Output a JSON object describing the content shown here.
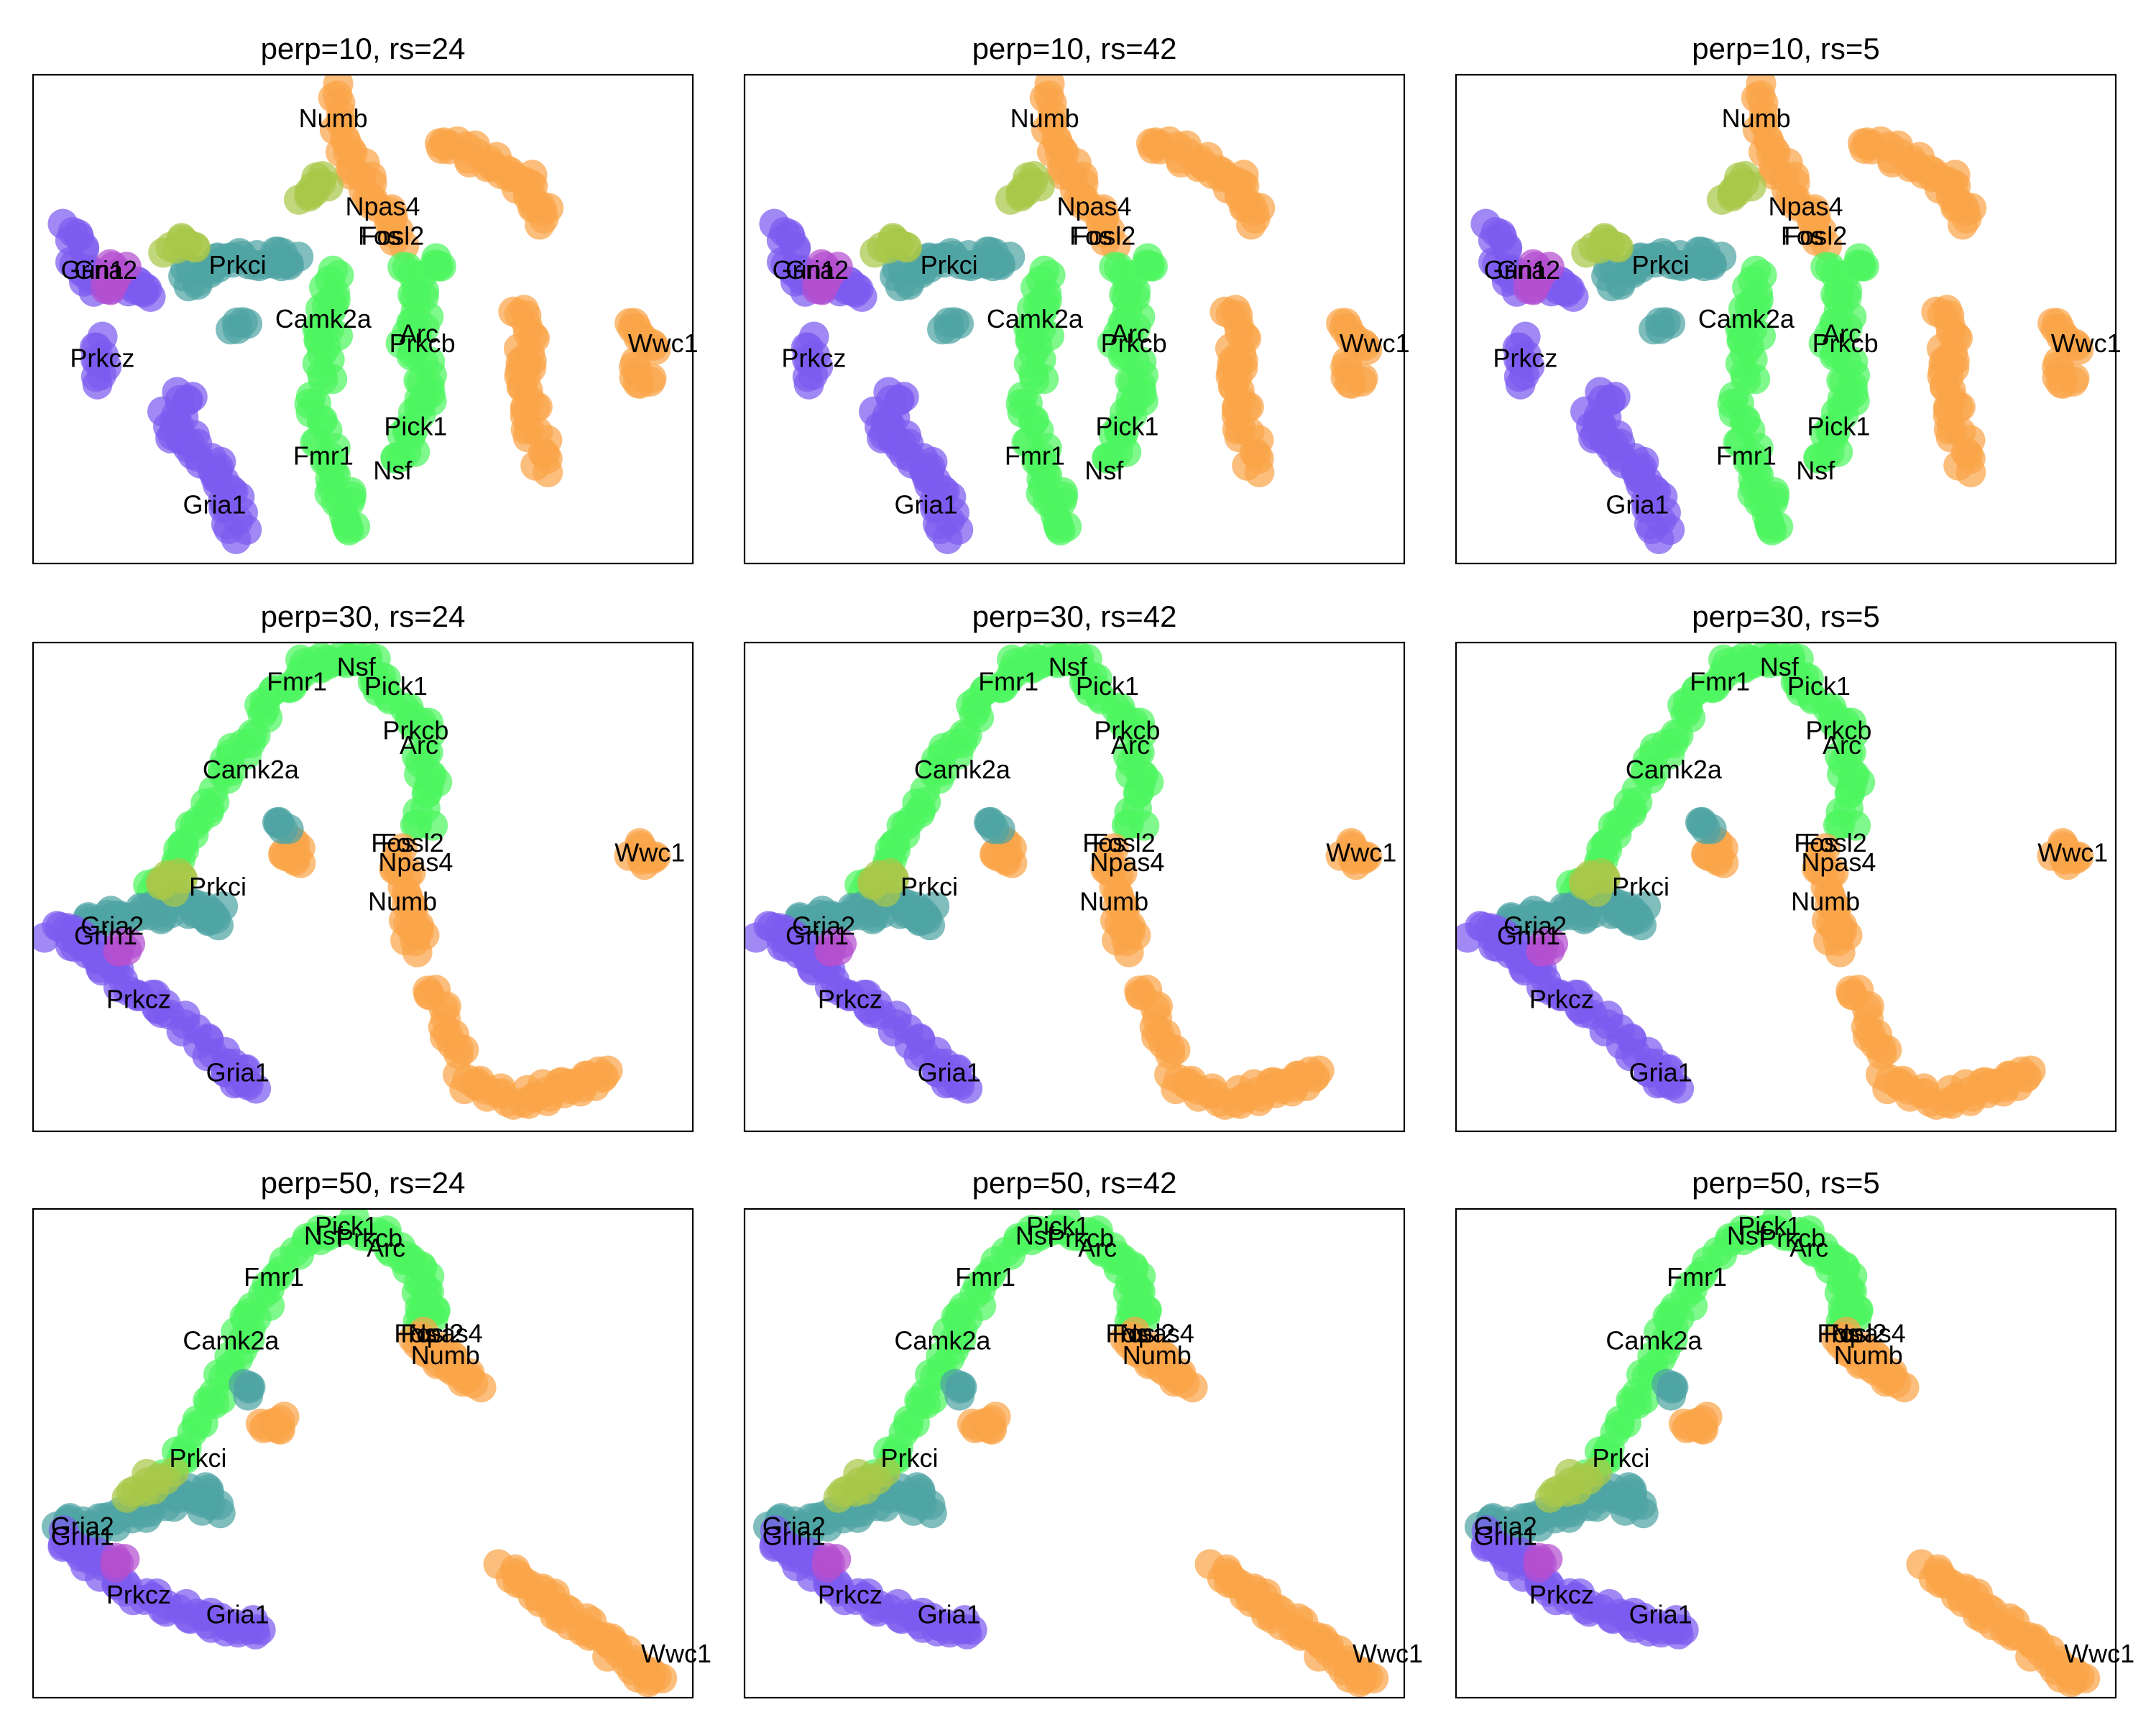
{
  "chart_data": {
    "type": "scatter",
    "title": "",
    "xlabel": "",
    "ylabel": "",
    "grid": false,
    "legend": "none",
    "colors": {
      "purple": "#7b5cf0",
      "teal": "#4fa4a4",
      "green": "#4df55f",
      "orange": "#fba54a",
      "magenta": "#b44fd0",
      "olive": "#a8c84a"
    },
    "panels": [
      {
        "title": "perp=10, rs=24",
        "layout": "p10"
      },
      {
        "title": "perp=10, rs=42",
        "layout": "p10"
      },
      {
        "title": "perp=10, rs=5",
        "layout": "p10"
      },
      {
        "title": "perp=30, rs=24",
        "layout": "p30"
      },
      {
        "title": "perp=30, rs=42",
        "layout": "p30"
      },
      {
        "title": "perp=30, rs=5",
        "layout": "p30"
      },
      {
        "title": "perp=50, rs=24",
        "layout": "p50"
      },
      {
        "title": "perp=50, rs=42",
        "layout": "p50"
      },
      {
        "title": "perp=50, rs=5",
        "layout": "p50"
      }
    ],
    "layouts": {
      "p10": {
        "labels": [
          {
            "text": "Numb",
            "x": 0.455,
            "y": 0.91
          },
          {
            "text": "Npas4",
            "x": 0.53,
            "y": 0.73
          },
          {
            "text": "Fosl2",
            "x": 0.545,
            "y": 0.67
          },
          {
            "text": "Fos",
            "x": 0.525,
            "y": 0.67
          },
          {
            "text": "Grin1",
            "x": 0.09,
            "y": 0.6
          },
          {
            "text": "Gria2",
            "x": 0.11,
            "y": 0.6
          },
          {
            "text": "Prkci",
            "x": 0.31,
            "y": 0.61
          },
          {
            "text": "Camk2a",
            "x": 0.44,
            "y": 0.5
          },
          {
            "text": "Arc",
            "x": 0.585,
            "y": 0.47
          },
          {
            "text": "Prkcb",
            "x": 0.59,
            "y": 0.45
          },
          {
            "text": "Wwc1",
            "x": 0.955,
            "y": 0.45
          },
          {
            "text": "Prkcz",
            "x": 0.105,
            "y": 0.42
          },
          {
            "text": "Pick1",
            "x": 0.58,
            "y": 0.28
          },
          {
            "text": "Fmr1",
            "x": 0.44,
            "y": 0.22
          },
          {
            "text": "Nsf",
            "x": 0.545,
            "y": 0.19
          },
          {
            "text": "Gria1",
            "x": 0.275,
            "y": 0.12
          }
        ],
        "clusters": [
          {
            "color": "orange",
            "path": [
              [
                0.61,
                0.87
              ],
              [
                0.66,
                0.84
              ],
              [
                0.72,
                0.8
              ],
              [
                0.76,
                0.76
              ],
              [
                0.78,
                0.7
              ]
            ]
          },
          {
            "color": "orange",
            "path": [
              [
                0.74,
                0.52
              ],
              [
                0.75,
                0.44
              ],
              [
                0.74,
                0.37
              ],
              [
                0.76,
                0.28
              ],
              [
                0.77,
                0.2
              ]
            ]
          },
          {
            "color": "orange",
            "path": [
              [
                0.9,
                0.5
              ],
              [
                0.93,
                0.43
              ],
              [
                0.92,
                0.36
              ]
            ]
          },
          {
            "color": "orange",
            "path": [
              [
                0.45,
                0.97
              ],
              [
                0.47,
                0.86
              ],
              [
                0.5,
                0.79
              ],
              [
                0.53,
                0.73
              ],
              [
                0.55,
                0.66
              ]
            ]
          },
          {
            "color": "green",
            "path": [
              [
                0.45,
                0.6
              ],
              [
                0.44,
                0.52
              ],
              [
                0.45,
                0.44
              ],
              [
                0.43,
                0.32
              ],
              [
                0.45,
                0.22
              ],
              [
                0.47,
                0.13
              ],
              [
                0.48,
                0.07
              ]
            ]
          },
          {
            "color": "green",
            "path": [
              [
                0.57,
                0.6
              ],
              [
                0.59,
                0.52
              ],
              [
                0.57,
                0.44
              ],
              [
                0.6,
                0.36
              ],
              [
                0.58,
                0.28
              ],
              [
                0.56,
                0.2
              ]
            ]
          },
          {
            "color": "green",
            "path": [
              [
                0.62,
                0.62
              ]
            ]
          },
          {
            "color": "teal",
            "path": [
              [
                0.23,
                0.58
              ],
              [
                0.27,
                0.6
              ],
              [
                0.31,
                0.62
              ],
              [
                0.36,
                0.62
              ],
              [
                0.39,
                0.63
              ]
            ]
          },
          {
            "color": "teal",
            "path": [
              [
                0.31,
                0.48
              ]
            ]
          },
          {
            "color": "purple",
            "path": [
              [
                0.06,
                0.7
              ],
              [
                0.07,
                0.6
              ],
              [
                0.1,
                0.57
              ],
              [
                0.15,
                0.58
              ],
              [
                0.17,
                0.55
              ]
            ]
          },
          {
            "color": "purple",
            "path": [
              [
                0.1,
                0.45
              ],
              [
                0.11,
                0.38
              ]
            ]
          },
          {
            "color": "purple",
            "path": [
              [
                0.23,
                0.35
              ],
              [
                0.2,
                0.28
              ],
              [
                0.24,
                0.24
              ],
              [
                0.28,
                0.2
              ],
              [
                0.3,
                0.13
              ],
              [
                0.31,
                0.06
              ]
            ]
          },
          {
            "color": "olive",
            "path": [
              [
                0.41,
                0.75
              ],
              [
                0.44,
                0.79
              ]
            ]
          },
          {
            "color": "olive",
            "path": [
              [
                0.21,
                0.65
              ],
              [
                0.24,
                0.66
              ]
            ]
          },
          {
            "color": "magenta",
            "path": [
              [
                0.11,
                0.55
              ],
              [
                0.13,
                0.62
              ]
            ]
          }
        ]
      },
      "p30": {
        "labels": [
          {
            "text": "Nsf",
            "x": 0.49,
            "y": 0.95
          },
          {
            "text": "Fmr1",
            "x": 0.4,
            "y": 0.92
          },
          {
            "text": "Pick1",
            "x": 0.55,
            "y": 0.91
          },
          {
            "text": "Prkcb",
            "x": 0.58,
            "y": 0.82
          },
          {
            "text": "Arc",
            "x": 0.585,
            "y": 0.79
          },
          {
            "text": "Camk2a",
            "x": 0.33,
            "y": 0.74
          },
          {
            "text": "Fos",
            "x": 0.545,
            "y": 0.59
          },
          {
            "text": "Fosl2",
            "x": 0.575,
            "y": 0.59
          },
          {
            "text": "Npas4",
            "x": 0.58,
            "y": 0.55
          },
          {
            "text": "Wwc1",
            "x": 0.935,
            "y": 0.57
          },
          {
            "text": "Prkci",
            "x": 0.28,
            "y": 0.5
          },
          {
            "text": "Numb",
            "x": 0.56,
            "y": 0.47
          },
          {
            "text": "Gria2",
            "x": 0.12,
            "y": 0.42
          },
          {
            "text": "Grin1",
            "x": 0.11,
            "y": 0.4
          },
          {
            "text": "Prkcz",
            "x": 0.16,
            "y": 0.27
          },
          {
            "text": "Gria1",
            "x": 0.31,
            "y": 0.12
          }
        ],
        "clusters": [
          {
            "color": "green",
            "path": [
              [
                0.18,
                0.48
              ],
              [
                0.22,
                0.56
              ],
              [
                0.26,
                0.66
              ],
              [
                0.31,
                0.76
              ],
              [
                0.35,
                0.86
              ],
              [
                0.4,
                0.94
              ],
              [
                0.45,
                0.97
              ],
              [
                0.5,
                0.96
              ],
              [
                0.54,
                0.9
              ],
              [
                0.59,
                0.82
              ],
              [
                0.6,
                0.72
              ],
              [
                0.59,
                0.62
              ]
            ]
          },
          {
            "color": "orange",
            "path": [
              [
                0.4,
                0.58
              ],
              [
                0.39,
                0.56
              ]
            ]
          },
          {
            "color": "orange",
            "path": [
              [
                0.55,
                0.58
              ],
              [
                0.56,
                0.5
              ],
              [
                0.57,
                0.43
              ],
              [
                0.58,
                0.38
              ]
            ]
          },
          {
            "color": "orange",
            "path": [
              [
                0.91,
                0.58
              ],
              [
                0.94,
                0.56
              ]
            ]
          },
          {
            "color": "orange",
            "path": [
              [
                0.6,
                0.3
              ],
              [
                0.63,
                0.2
              ],
              [
                0.66,
                0.1
              ],
              [
                0.72,
                0.07
              ],
              [
                0.78,
                0.08
              ],
              [
                0.83,
                0.09
              ],
              [
                0.86,
                0.12
              ]
            ]
          },
          {
            "color": "teal",
            "path": [
              [
                0.07,
                0.42
              ],
              [
                0.12,
                0.44
              ],
              [
                0.17,
                0.44
              ],
              [
                0.22,
                0.46
              ],
              [
                0.27,
                0.45
              ],
              [
                0.28,
                0.43
              ]
            ]
          },
          {
            "color": "purple",
            "path": [
              [
                0.03,
                0.41
              ],
              [
                0.07,
                0.39
              ],
              [
                0.1,
                0.37
              ],
              [
                0.12,
                0.32
              ],
              [
                0.18,
                0.27
              ],
              [
                0.24,
                0.2
              ],
              [
                0.3,
                0.13
              ],
              [
                0.33,
                0.09
              ]
            ]
          },
          {
            "color": "olive",
            "path": [
              [
                0.22,
                0.52
              ],
              [
                0.2,
                0.5
              ]
            ]
          },
          {
            "color": "magenta",
            "path": [
              [
                0.14,
                0.38
              ]
            ]
          },
          {
            "color": "teal",
            "path": [
              [
                0.38,
                0.62
              ]
            ]
          }
        ]
      },
      "p50": {
        "labels": [
          {
            "text": "Pick1",
            "x": 0.475,
            "y": 0.965
          },
          {
            "text": "Nsf",
            "x": 0.44,
            "y": 0.945
          },
          {
            "text": "Prkcb",
            "x": 0.51,
            "y": 0.94
          },
          {
            "text": "Arc",
            "x": 0.535,
            "y": 0.92
          },
          {
            "text": "Fmr1",
            "x": 0.365,
            "y": 0.86
          },
          {
            "text": "Camk2a",
            "x": 0.3,
            "y": 0.73
          },
          {
            "text": "Fos",
            "x": 0.58,
            "y": 0.745
          },
          {
            "text": "Fosl2",
            "x": 0.605,
            "y": 0.745
          },
          {
            "text": "Npas4",
            "x": 0.625,
            "y": 0.745
          },
          {
            "text": "Numb",
            "x": 0.625,
            "y": 0.7
          },
          {
            "text": "Prkci",
            "x": 0.25,
            "y": 0.49
          },
          {
            "text": "Gria2",
            "x": 0.075,
            "y": 0.35
          },
          {
            "text": "Grin1",
            "x": 0.075,
            "y": 0.33
          },
          {
            "text": "Prkcz",
            "x": 0.16,
            "y": 0.21
          },
          {
            "text": "Gria1",
            "x": 0.31,
            "y": 0.17
          },
          {
            "text": "Wwc1",
            "x": 0.975,
            "y": 0.09
          }
        ],
        "clusters": [
          {
            "color": "green",
            "path": [
              [
                0.2,
                0.44
              ],
              [
                0.24,
                0.54
              ],
              [
                0.28,
                0.64
              ],
              [
                0.32,
                0.74
              ],
              [
                0.36,
                0.84
              ],
              [
                0.42,
                0.93
              ],
              [
                0.48,
                0.97
              ],
              [
                0.54,
                0.93
              ],
              [
                0.58,
                0.88
              ],
              [
                0.6,
                0.82
              ],
              [
                0.59,
                0.77
              ]
            ]
          },
          {
            "color": "orange",
            "path": [
              [
                0.58,
                0.74
              ],
              [
                0.61,
                0.7
              ],
              [
                0.64,
                0.68
              ],
              [
                0.67,
                0.64
              ]
            ]
          },
          {
            "color": "orange",
            "path": [
              [
                0.37,
                0.57
              ],
              [
                0.36,
                0.55
              ]
            ]
          },
          {
            "color": "orange",
            "path": [
              [
                0.72,
                0.26
              ],
              [
                0.76,
                0.22
              ],
              [
                0.8,
                0.18
              ],
              [
                0.84,
                0.14
              ],
              [
                0.88,
                0.1
              ],
              [
                0.92,
                0.06
              ],
              [
                0.94,
                0.03
              ]
            ]
          },
          {
            "color": "teal",
            "path": [
              [
                0.05,
                0.35
              ],
              [
                0.1,
                0.35
              ],
              [
                0.15,
                0.38
              ],
              [
                0.2,
                0.4
              ],
              [
                0.25,
                0.42
              ],
              [
                0.28,
                0.39
              ]
            ]
          },
          {
            "color": "purple",
            "path": [
              [
                0.04,
                0.33
              ],
              [
                0.08,
                0.29
              ],
              [
                0.12,
                0.25
              ],
              [
                0.18,
                0.2
              ],
              [
                0.24,
                0.17
              ],
              [
                0.3,
                0.15
              ],
              [
                0.34,
                0.14
              ]
            ]
          },
          {
            "color": "olive",
            "path": [
              [
                0.15,
                0.42
              ],
              [
                0.2,
                0.46
              ]
            ]
          },
          {
            "color": "magenta",
            "path": [
              [
                0.13,
                0.27
              ]
            ]
          },
          {
            "color": "teal",
            "path": [
              [
                0.33,
                0.63
              ]
            ]
          }
        ]
      }
    }
  }
}
